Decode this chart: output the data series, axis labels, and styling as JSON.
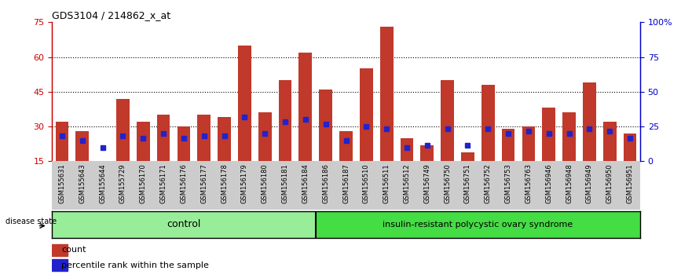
{
  "title": "GDS3104 / 214862_x_at",
  "samples": [
    "GSM155631",
    "GSM155643",
    "GSM155644",
    "GSM155729",
    "GSM156170",
    "GSM156171",
    "GSM156176",
    "GSM156177",
    "GSM156178",
    "GSM156179",
    "GSM156180",
    "GSM156181",
    "GSM156184",
    "GSM156186",
    "GSM156187",
    "GSM156510",
    "GSM156511",
    "GSM156512",
    "GSM156749",
    "GSM156750",
    "GSM156751",
    "GSM156752",
    "GSM156753",
    "GSM156763",
    "GSM156946",
    "GSM156948",
    "GSM156949",
    "GSM156950",
    "GSM156951"
  ],
  "counts": [
    32,
    28,
    15,
    42,
    32,
    35,
    30,
    35,
    34,
    65,
    36,
    50,
    62,
    46,
    28,
    55,
    73,
    25,
    22,
    50,
    19,
    48,
    29,
    30,
    38,
    36,
    49,
    32,
    27
  ],
  "percentile_ranks": [
    26,
    24,
    21,
    26,
    25,
    27,
    25,
    26,
    26,
    34,
    27,
    32,
    33,
    31,
    24,
    30,
    29,
    21,
    22,
    29,
    22,
    29,
    27,
    28,
    27,
    27,
    29,
    28,
    25
  ],
  "control_count": 13,
  "disease_count": 16,
  "bar_color": "#c0392b",
  "percentile_color": "#2222cc",
  "background_color": "#ffffff",
  "tick_area_color": "#cccccc",
  "control_bg": "#98ee98",
  "disease_bg": "#44dd44",
  "left_yticks": [
    15,
    30,
    45,
    60,
    75
  ],
  "right_ytick_vals": [
    0,
    25,
    50,
    75,
    100
  ],
  "right_ytick_labels": [
    "0",
    "25",
    "50",
    "75",
    "100%"
  ],
  "ylim_left": [
    15,
    75
  ],
  "ylim_right": [
    0,
    100
  ],
  "ylabel_left_color": "#cc0000",
  "ylabel_right_color": "#0000cc",
  "disease_label": "insulin-resistant polycystic ovary syndrome",
  "control_label": "control",
  "disease_state_label": "disease state",
  "legend_count": "count",
  "legend_percentile": "percentile rank within the sample",
  "grid_color": "#000000"
}
